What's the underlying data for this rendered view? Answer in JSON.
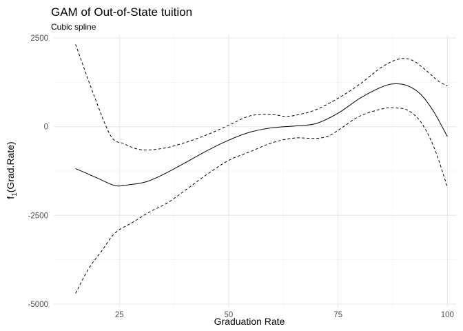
{
  "chart_data": {
    "type": "line",
    "title": "GAM of Out-of-State tuition",
    "subtitle": "Cubic spline",
    "xlabel": "Graduation Rate",
    "ylabel_main": "f",
    "ylabel_sub": "1",
    "ylabel_arg": "(Grad.Rate)",
    "xlim": [
      10,
      102
    ],
    "ylim": [
      -5100,
      2600
    ],
    "x_ticks": [
      25,
      50,
      75,
      100
    ],
    "x_tick_labels": [
      "25",
      "50",
      "75",
      "100"
    ],
    "y_ticks": [
      2500,
      0,
      -2500,
      -5000
    ],
    "y_tick_labels": [
      "2500",
      "0",
      "-2500",
      "-5000"
    ],
    "grid": true,
    "legend": "none",
    "series": [
      {
        "style": "solid",
        "x": [
          15,
          20,
          24,
          27,
          31,
          35,
          40,
          45,
          50,
          55,
          60,
          65,
          70,
          75,
          80,
          85,
          88,
          91,
          94,
          97,
          100
        ],
        "y": [
          -1180,
          -1450,
          -1660,
          -1640,
          -1560,
          -1350,
          -1020,
          -680,
          -380,
          -150,
          -30,
          20,
          90,
          380,
          800,
          1120,
          1210,
          1150,
          900,
          400,
          -280
        ]
      },
      {
        "style": "dashed",
        "x": [
          15,
          19,
          23,
          26,
          30,
          35,
          40,
          45,
          50,
          55,
          60,
          63,
          66,
          70,
          75,
          80,
          85,
          89,
          92,
          95,
          98,
          100
        ],
        "y": [
          2320,
          950,
          -250,
          -480,
          -650,
          -610,
          -450,
          -230,
          40,
          310,
          340,
          290,
          340,
          480,
          800,
          1200,
          1680,
          1910,
          1870,
          1600,
          1280,
          1150
        ]
      },
      {
        "style": "dashed",
        "x": [
          15,
          18,
          21,
          24,
          28,
          32,
          36,
          40,
          45,
          50,
          55,
          60,
          65,
          70,
          73,
          76,
          80,
          85,
          88,
          91,
          94,
          97,
          100
        ],
        "y": [
          -4700,
          -4000,
          -3500,
          -3000,
          -2700,
          -2400,
          -2150,
          -1800,
          -1350,
          -950,
          -700,
          -450,
          -320,
          -330,
          -250,
          -20,
          300,
          500,
          530,
          460,
          120,
          -600,
          -1700
        ]
      }
    ]
  }
}
